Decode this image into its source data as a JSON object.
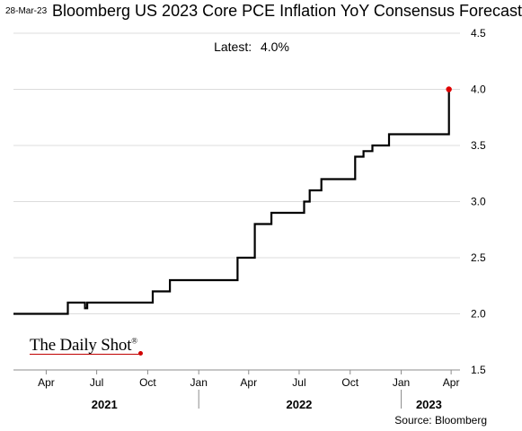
{
  "header": {
    "date_stamp": "28-Mar-23",
    "title": "Bloomberg US 2023 Core PCE Inflation YoY Consensus Forecast",
    "latest_label": "Latest:",
    "latest_value": "4.0%"
  },
  "footer": {
    "source": "Source: Bloomberg",
    "logo": "The Daily Shot"
  },
  "chart_data": {
    "type": "line",
    "title": "Bloomberg US 2023 Core PCE Inflation YoY Consensus Forecast",
    "xlabel": "",
    "ylabel": "",
    "x_range": [
      "2021-02-01",
      "2023-04-17"
    ],
    "ylim": [
      1.5,
      4.5
    ],
    "y_ticks": [
      1.5,
      2.0,
      2.5,
      3.0,
      3.5,
      4.0,
      4.5
    ],
    "y_axis_side": "right",
    "grid": "horizontal",
    "step": true,
    "x_month_ticks": [
      {
        "label": "Apr",
        "date": "2021-04-01"
      },
      {
        "label": "Jul",
        "date": "2021-07-01"
      },
      {
        "label": "Oct",
        "date": "2021-10-01"
      },
      {
        "label": "Jan",
        "date": "2022-01-01"
      },
      {
        "label": "Apr",
        "date": "2022-04-01"
      },
      {
        "label": "Jul",
        "date": "2022-07-01"
      },
      {
        "label": "Oct",
        "date": "2022-10-01"
      },
      {
        "label": "Jan",
        "date": "2023-01-01"
      },
      {
        "label": "Apr",
        "date": "2023-04-01"
      }
    ],
    "x_year_labels": [
      {
        "label": "2021",
        "date": "2021-07-15"
      },
      {
        "label": "2022",
        "date": "2022-07-01"
      },
      {
        "label": "2023",
        "date": "2023-02-20"
      }
    ],
    "year_separators": [
      "2022-01-01",
      "2023-01-01"
    ],
    "series": [
      {
        "color": "#000000",
        "points": [
          {
            "x": "2021-02-01",
            "y": 2.0
          },
          {
            "x": "2021-05-10",
            "y": 2.1
          },
          {
            "x": "2021-06-10",
            "y": 2.05
          },
          {
            "x": "2021-06-14",
            "y": 2.1
          },
          {
            "x": "2021-10-10",
            "y": 2.2
          },
          {
            "x": "2021-11-10",
            "y": 2.3
          },
          {
            "x": "2022-03-12",
            "y": 2.5
          },
          {
            "x": "2022-04-12",
            "y": 2.8
          },
          {
            "x": "2022-05-12",
            "y": 2.9
          },
          {
            "x": "2022-07-10",
            "y": 3.0
          },
          {
            "x": "2022-07-20",
            "y": 3.1
          },
          {
            "x": "2022-08-10",
            "y": 3.2
          },
          {
            "x": "2022-10-10",
            "y": 3.4
          },
          {
            "x": "2022-10-25",
            "y": 3.45
          },
          {
            "x": "2022-11-10",
            "y": 3.5
          },
          {
            "x": "2022-12-10",
            "y": 3.6
          },
          {
            "x": "2023-03-28",
            "y": 4.0
          }
        ],
        "end_marker": {
          "x": "2023-03-28",
          "y": 4.0,
          "color": "#e00000"
        }
      }
    ]
  }
}
